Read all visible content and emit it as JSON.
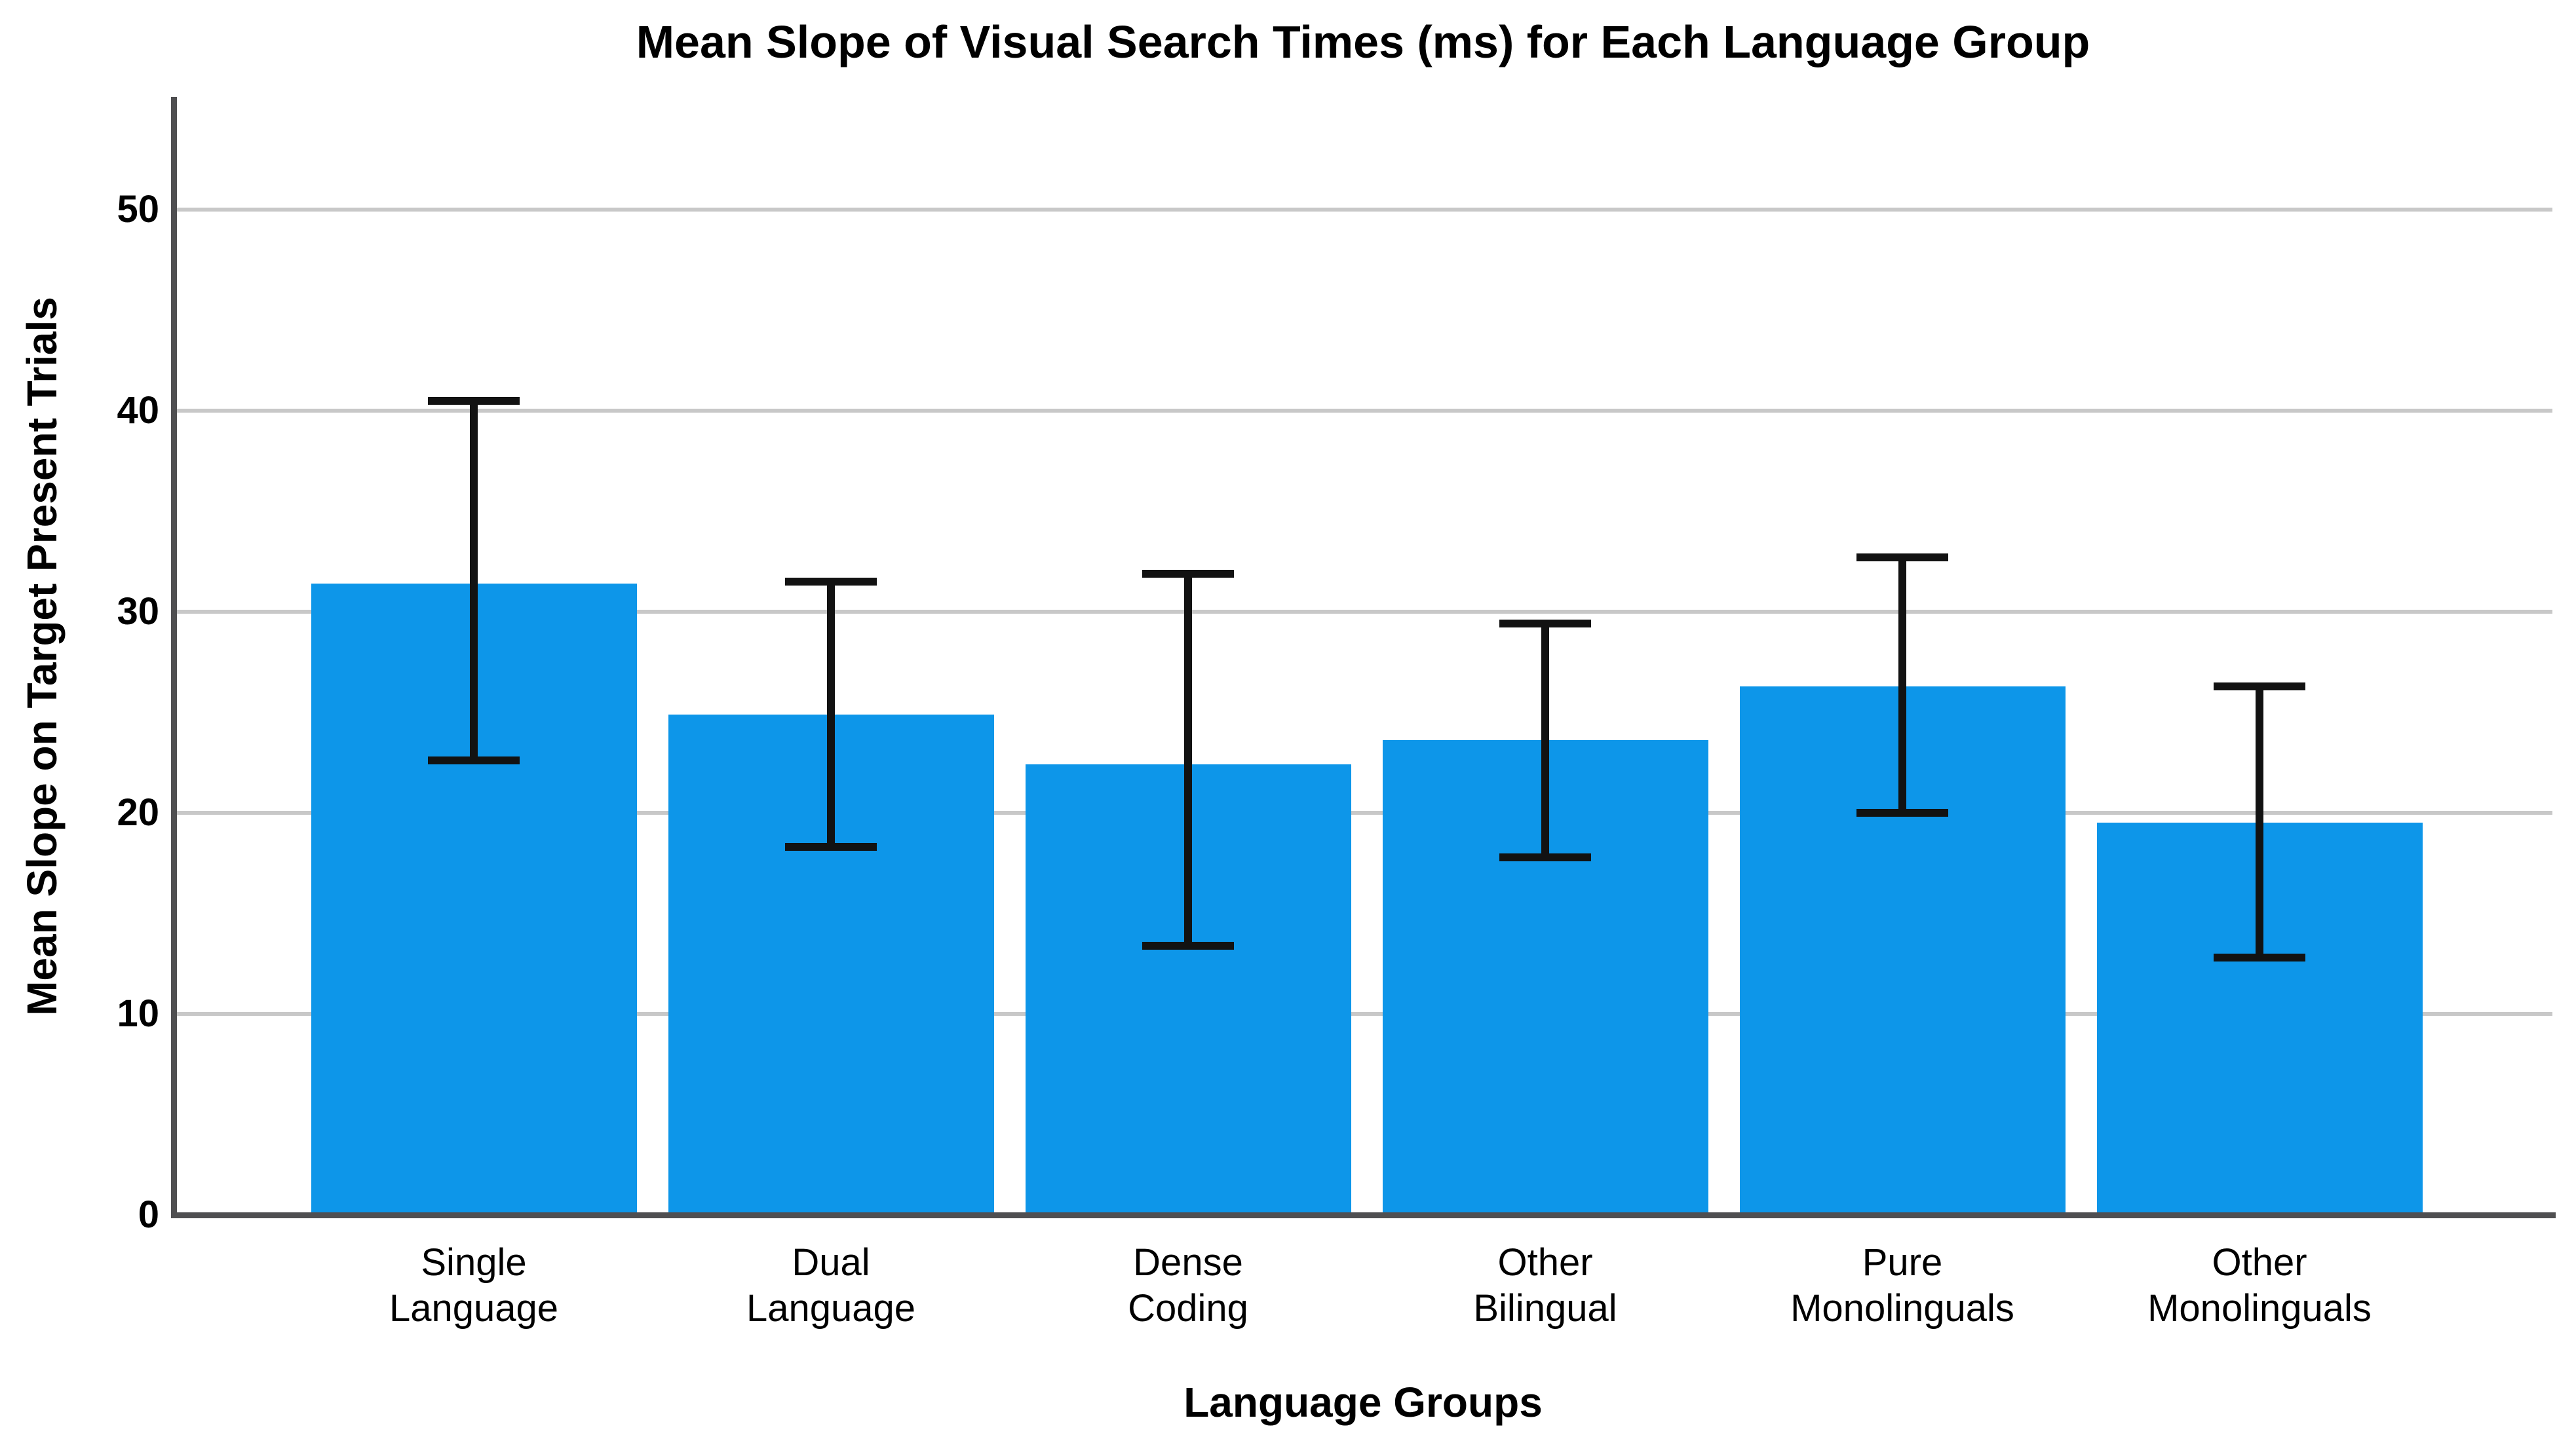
{
  "chart_data": {
    "type": "bar",
    "title": "Mean Slope of Visual Search Times (ms) for Each Language Group",
    "xlabel": "Language Groups",
    "ylabel": "Mean Slope on Target Present Trials",
    "categories": [
      "Single Language",
      "Dual Language",
      "Dense Coding",
      "Other Bilingual",
      "Pure Monolinguals",
      "Other Monolinguals"
    ],
    "values": [
      31.4,
      24.9,
      22.4,
      23.6,
      26.3,
      19.5
    ],
    "error_bars": {
      "upper": [
        40.5,
        31.5,
        31.9,
        29.4,
        32.7,
        26.3
      ],
      "lower": [
        22.6,
        18.3,
        13.4,
        17.8,
        20.0,
        12.8
      ]
    },
    "yticks": [
      0,
      10,
      20,
      30,
      40,
      50
    ],
    "ylim": [
      0,
      55.6
    ],
    "grid": "horizontal",
    "legend": "none",
    "colors": {
      "bar": "#0D96E9",
      "gridline": "#C8C8C8",
      "axis": "#4F4F51",
      "error_bar": "#121212",
      "text": "#000000",
      "background": "#FFFFFF"
    }
  }
}
